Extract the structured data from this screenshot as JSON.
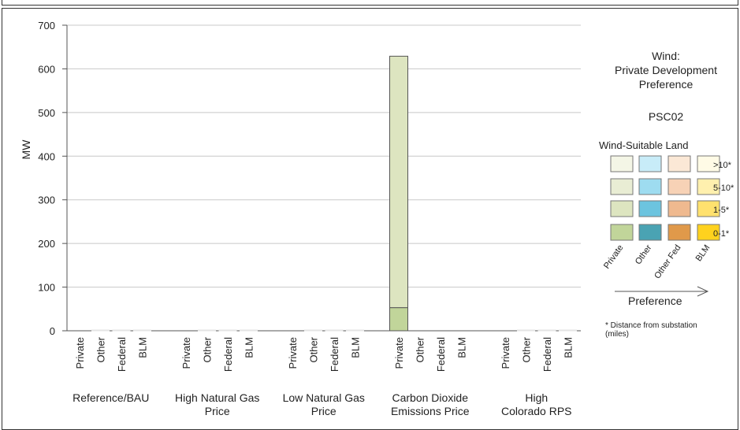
{
  "chart_data": {
    "type": "bar",
    "ylabel": "MW",
    "ylim": [
      0,
      700
    ],
    "yticks": [
      0,
      100,
      200,
      300,
      400,
      500,
      600,
      700
    ],
    "grid": true,
    "scenarios": [
      {
        "name": "Reference/BAU",
        "label_lines": [
          "Reference/BAU"
        ]
      },
      {
        "name": "High Natural Gas Price",
        "label_lines": [
          "High Natural Gas",
          "Price"
        ]
      },
      {
        "name": "Low Natural Gas Price",
        "label_lines": [
          "Low Natural Gas",
          "Price"
        ]
      },
      {
        "name": "Carbon Dioxide Emissions Price",
        "label_lines": [
          "Carbon Dioxide",
          "Emissions Price"
        ]
      },
      {
        "name": "High Colorado RPS",
        "label_lines": [
          "High",
          "Colorado RPS"
        ]
      }
    ],
    "categories": [
      "Private",
      "Other",
      "Federal",
      "BLM"
    ],
    "bars": [
      {
        "scenario": "Reference/BAU",
        "category": "Private",
        "segments": []
      },
      {
        "scenario": "Reference/BAU",
        "category": "Other",
        "segments": [
          {
            "band": "0-1*",
            "value": 0
          }
        ]
      },
      {
        "scenario": "Reference/BAU",
        "category": "Federal",
        "segments": [
          {
            "band": "0-1*",
            "value": 0
          }
        ]
      },
      {
        "scenario": "Reference/BAU",
        "category": "BLM",
        "segments": [
          {
            "band": "0-1*",
            "value": 0
          }
        ]
      },
      {
        "scenario": "High Natural Gas Price",
        "category": "Private",
        "segments": []
      },
      {
        "scenario": "High Natural Gas Price",
        "category": "Other",
        "segments": [
          {
            "band": "0-1*",
            "value": 0
          }
        ]
      },
      {
        "scenario": "High Natural Gas Price",
        "category": "Federal",
        "segments": [
          {
            "band": "0-1*",
            "value": 0
          }
        ]
      },
      {
        "scenario": "High Natural Gas Price",
        "category": "BLM",
        "segments": [
          {
            "band": "0-1*",
            "value": 0
          }
        ]
      },
      {
        "scenario": "Low Natural Gas Price",
        "category": "Private",
        "segments": []
      },
      {
        "scenario": "Low Natural Gas Price",
        "category": "Other",
        "segments": [
          {
            "band": "0-1*",
            "value": 0
          }
        ]
      },
      {
        "scenario": "Low Natural Gas Price",
        "category": "Federal",
        "segments": [
          {
            "band": "0-1*",
            "value": 0
          }
        ]
      },
      {
        "scenario": "Low Natural Gas Price",
        "category": "BLM",
        "segments": [
          {
            "band": "0-1*",
            "value": 0
          }
        ]
      },
      {
        "scenario": "Carbon Dioxide Emissions Price",
        "category": "Private",
        "segments": [
          {
            "band": "0-1*",
            "value": 53
          },
          {
            "band": "1-5*",
            "value": 576
          }
        ]
      },
      {
        "scenario": "Carbon Dioxide Emissions Price",
        "category": "Other",
        "segments": []
      },
      {
        "scenario": "Carbon Dioxide Emissions Price",
        "category": "Federal",
        "segments": []
      },
      {
        "scenario": "Carbon Dioxide Emissions Price",
        "category": "BLM",
        "segments": []
      },
      {
        "scenario": "High Colorado RPS",
        "category": "Private",
        "segments": []
      },
      {
        "scenario": "High Colorado RPS",
        "category": "Other",
        "segments": [
          {
            "band": "0-1*",
            "value": 0
          }
        ]
      },
      {
        "scenario": "High Colorado RPS",
        "category": "Federal",
        "segments": [
          {
            "band": "0-1*",
            "value": 0
          }
        ]
      },
      {
        "scenario": "High Colorado RPS",
        "category": "BLM",
        "segments": [
          {
            "band": "0-1*",
            "value": 0
          }
        ]
      }
    ]
  },
  "legend": {
    "title_lines": [
      "Wind:",
      "Private Development",
      "Preference"
    ],
    "scenario_code": "PSC02",
    "land_heading": "Wind-Suitable Land",
    "distance_bands": [
      ">10*",
      "5-10*",
      "1-5*",
      "0-1*"
    ],
    "columns": [
      "Private",
      "Other",
      "Other Fed",
      "BLM"
    ],
    "colors": {
      "Private": {
        ">10*": "#f4f6e6",
        "5-10*": "#e9edd4",
        "1-5*": "#dde5c0",
        "0-1*": "#c1d59a"
      },
      "Other": {
        ">10*": "#c8ecf8",
        "5-10*": "#9edcf0",
        "1-5*": "#6cc4df",
        "0-1*": "#4aa3b3"
      },
      "Other Fed": {
        ">10*": "#fbe8d6",
        "5-10*": "#f7d2b6",
        "1-5*": "#efb98f",
        "0-1*": "#e0994a"
      },
      "BLM": {
        ">10*": "#fffbe6",
        "5-10*": "#fff0ae",
        "1-5*": "#ffe16e",
        "0-1*": "#ffd21e"
      }
    },
    "arrow_label": "Preference",
    "note_lines": [
      "* Distance from substation",
      "(miles)"
    ]
  }
}
